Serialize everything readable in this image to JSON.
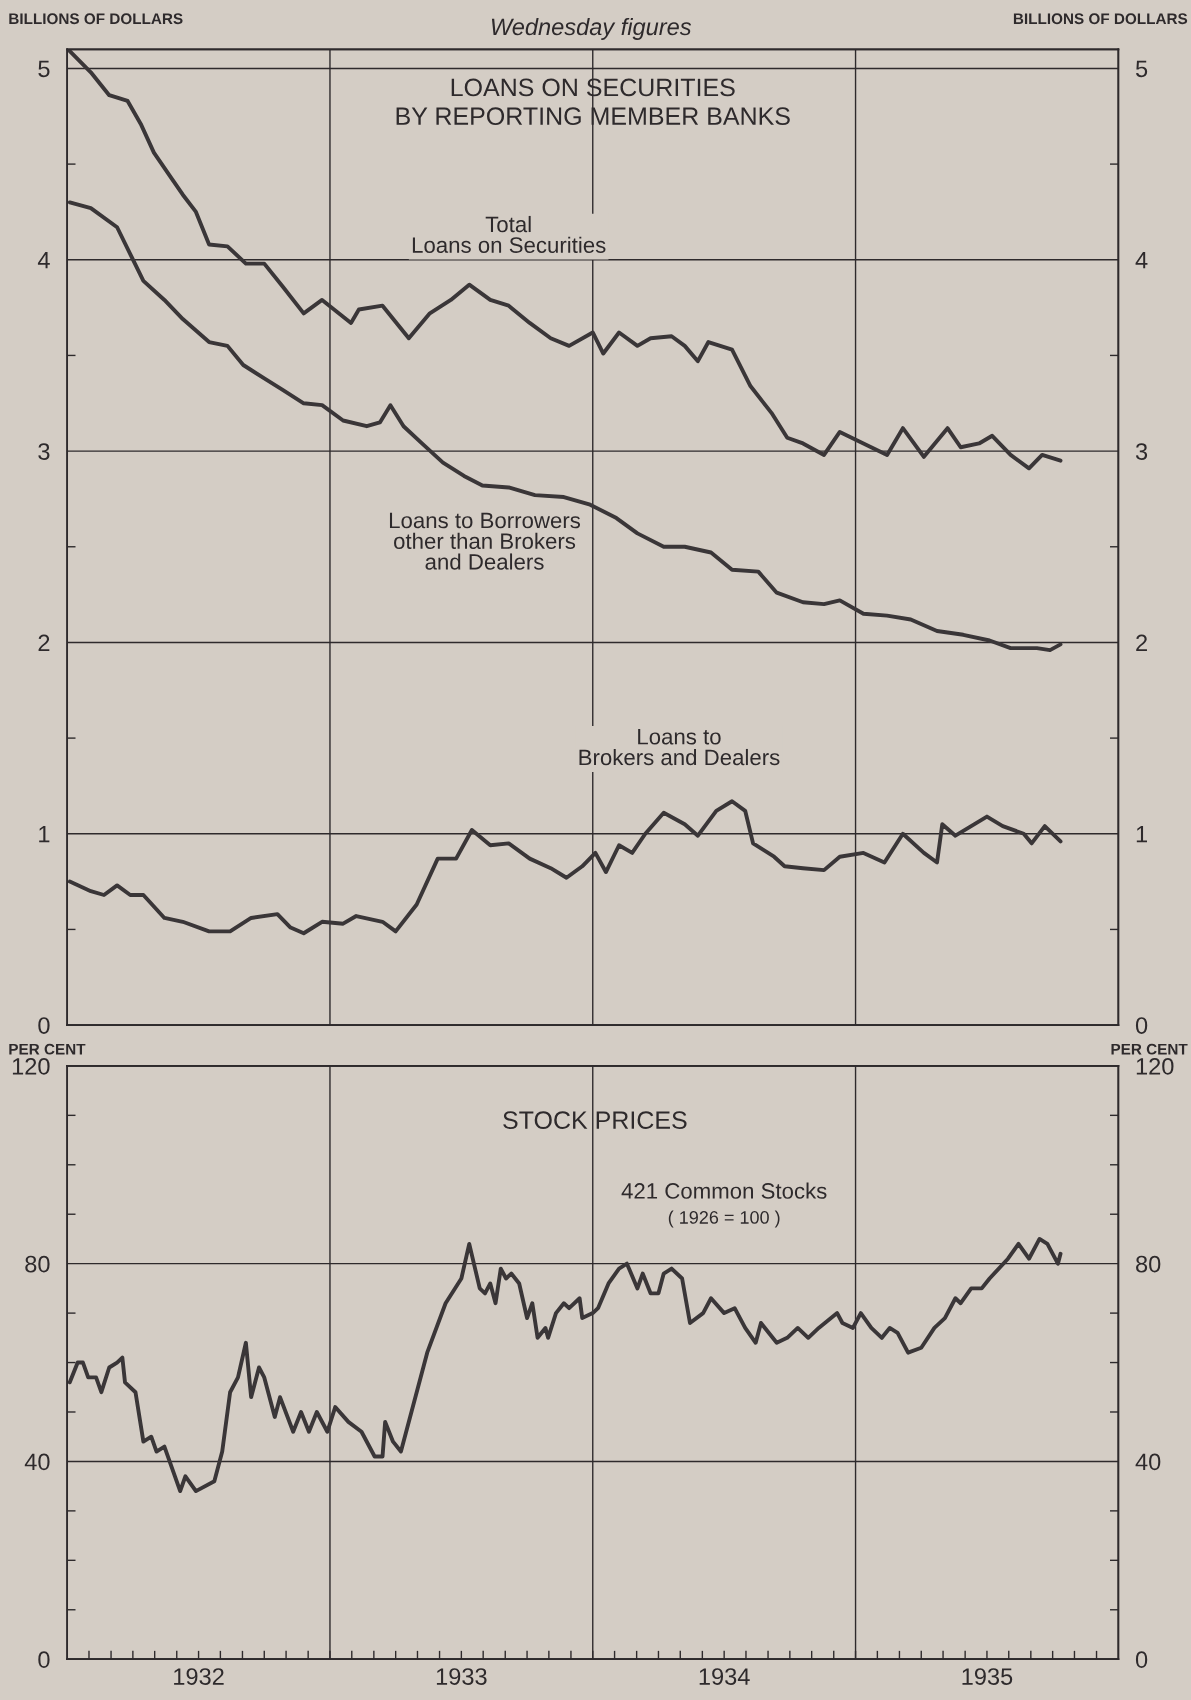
{
  "chart_data": [
    {
      "type": "line",
      "title": "LOANS ON SECURITIES\nBY REPORTING MEMBER BANKS",
      "ylabel": "BILLIONS OF DOLLARS",
      "y2label": "BILLIONS OF DOLLARS",
      "annotations": [
        "Wednesday figures"
      ],
      "xlim": [
        1932,
        1936
      ],
      "ylim": [
        0,
        5.1
      ],
      "y2lim": [
        0,
        5.1
      ],
      "yticks": [
        0,
        {
          "value": 0.5,
          "label": null
        },
        1,
        {
          "value": 1.5,
          "label": null
        },
        2,
        {
          "value": 2.5,
          "label": null
        },
        3,
        {
          "value": 3.5,
          "label": null
        },
        4,
        {
          "value": 4.5,
          "label": null
        },
        5
      ],
      "y2ticks": [
        0,
        {
          "value": 0.5,
          "label": null
        },
        1,
        {
          "value": 1.5,
          "label": null
        },
        2,
        {
          "value": 2.5,
          "label": null
        },
        3,
        {
          "value": 3.5,
          "label": null
        },
        4,
        {
          "value": 4.5,
          "label": null
        },
        5
      ],
      "tick_labels": "y",
      "grid": "y",
      "ref_lines": [
        {
          "axis": "x",
          "value": 1933
        },
        {
          "axis": "x",
          "value": 1934
        },
        {
          "axis": "x",
          "value": 1935
        }
      ],
      "series": [
        {
          "name": "Total\nLoans on Securities",
          "color": "#3a3638",
          "x": [
            1932.01,
            1932.09,
            1932.16,
            1932.23,
            1932.28,
            1932.33,
            1932.39,
            1932.44,
            1932.49,
            1932.54,
            1932.61,
            1932.68,
            1932.75,
            1932.82,
            1932.9,
            1932.97,
            1933.08,
            1933.11,
            1933.2,
            1933.3,
            1933.38,
            1933.46,
            1933.53,
            1933.61,
            1933.68,
            1933.76,
            1933.84,
            1933.91,
            1934.0,
            1934.04,
            1934.1,
            1934.17,
            1934.22,
            1934.3,
            1934.35,
            1934.4,
            1934.44,
            1934.53,
            1934.6,
            1934.68,
            1934.74,
            1934.8,
            1934.88,
            1934.94,
            1935.03,
            1935.12,
            1935.18,
            1935.26,
            1935.35,
            1935.4,
            1935.47,
            1935.52,
            1935.59,
            1935.66,
            1935.71,
            1935.78
          ],
          "values": [
            5.09,
            4.98,
            4.86,
            4.83,
            4.71,
            4.56,
            4.44,
            4.34,
            4.25,
            4.08,
            4.07,
            3.98,
            3.98,
            3.86,
            3.72,
            3.79,
            3.67,
            3.74,
            3.76,
            3.59,
            3.72,
            3.79,
            3.87,
            3.79,
            3.76,
            3.67,
            3.59,
            3.55,
            3.62,
            3.51,
            3.62,
            3.55,
            3.59,
            3.6,
            3.55,
            3.47,
            3.57,
            3.53,
            3.34,
            3.2,
            3.07,
            3.04,
            2.98,
            3.1,
            3.04,
            2.98,
            3.12,
            2.97,
            3.12,
            3.02,
            3.04,
            3.08,
            2.98,
            2.91,
            2.98,
            2.95
          ]
        },
        {
          "name": "Loans to Borrowers\nother than Brokers\nand Dealers",
          "color": "#3a3638",
          "x": [
            1932.01,
            1932.09,
            1932.19,
            1932.24,
            1932.29,
            1932.37,
            1932.44,
            1932.54,
            1932.61,
            1932.67,
            1932.75,
            1932.82,
            1932.9,
            1932.97,
            1933.05,
            1933.14,
            1933.19,
            1933.23,
            1933.28,
            1933.35,
            1933.43,
            1933.51,
            1933.58,
            1933.68,
            1933.78,
            1933.89,
            1933.99,
            1934.09,
            1934.17,
            1934.27,
            1934.35,
            1934.45,
            1934.53,
            1934.63,
            1934.7,
            1934.8,
            1934.88,
            1934.94,
            1935.03,
            1935.12,
            1935.21,
            1935.31,
            1935.41,
            1935.51,
            1935.59,
            1935.69,
            1935.74,
            1935.78
          ],
          "values": [
            4.3,
            4.27,
            4.17,
            4.03,
            3.89,
            3.79,
            3.69,
            3.57,
            3.55,
            3.45,
            3.38,
            3.32,
            3.25,
            3.24,
            3.16,
            3.13,
            3.15,
            3.24,
            3.13,
            3.04,
            2.94,
            2.87,
            2.82,
            2.81,
            2.77,
            2.76,
            2.72,
            2.65,
            2.57,
            2.5,
            2.5,
            2.47,
            2.38,
            2.37,
            2.26,
            2.21,
            2.2,
            2.22,
            2.15,
            2.14,
            2.12,
            2.06,
            2.04,
            2.01,
            1.97,
            1.97,
            1.96,
            1.99
          ]
        },
        {
          "name": "Loans to\nBrokers and Dealers",
          "color": "#3a3638",
          "x": [
            1932.01,
            1932.09,
            1932.14,
            1932.19,
            1932.24,
            1932.29,
            1932.37,
            1932.44,
            1932.54,
            1932.62,
            1932.7,
            1932.8,
            1932.85,
            1932.9,
            1932.97,
            1933.05,
            1933.1,
            1933.2,
            1933.25,
            1933.33,
            1933.41,
            1933.48,
            1933.54,
            1933.61,
            1933.68,
            1933.76,
            1933.84,
            1933.9,
            1933.96,
            1934.01,
            1934.05,
            1934.1,
            1934.15,
            1934.2,
            1934.27,
            1934.35,
            1934.4,
            1934.47,
            1934.53,
            1934.58,
            1934.61,
            1934.69,
            1934.73,
            1934.8,
            1934.88,
            1934.94,
            1935.03,
            1935.11,
            1935.18,
            1935.26,
            1935.31,
            1935.33,
            1935.38,
            1935.5,
            1935.56,
            1935.64,
            1935.67,
            1935.72,
            1935.78
          ],
          "values": [
            0.75,
            0.7,
            0.68,
            0.73,
            0.68,
            0.68,
            0.56,
            0.54,
            0.49,
            0.49,
            0.56,
            0.58,
            0.51,
            0.48,
            0.54,
            0.53,
            0.57,
            0.54,
            0.49,
            0.63,
            0.87,
            0.87,
            1.02,
            0.94,
            0.95,
            0.87,
            0.82,
            0.77,
            0.83,
            0.9,
            0.8,
            0.94,
            0.9,
            1.0,
            1.11,
            1.05,
            0.99,
            1.12,
            1.17,
            1.12,
            0.95,
            0.88,
            0.83,
            0.82,
            0.81,
            0.88,
            0.9,
            0.85,
            1.0,
            0.9,
            0.85,
            1.05,
            0.99,
            1.09,
            1.04,
            1.0,
            0.95,
            1.04,
            0.96
          ]
        }
      ]
    },
    {
      "type": "line",
      "title": "STOCK PRICES",
      "ylabel": "PER CENT",
      "y2label": "PER CENT",
      "annotations": [
        "( 1926 = 100 )"
      ],
      "xlim": [
        1932,
        1936
      ],
      "ylim": [
        0,
        120
      ],
      "y2lim": [
        0,
        120
      ],
      "xticks": [
        {
          "value": 1932.083,
          "label": null
        },
        {
          "value": 1932.167,
          "label": null
        },
        {
          "value": 1932.25,
          "label": null
        },
        {
          "value": 1932.333,
          "label": null
        },
        {
          "value": 1932.417,
          "label": null
        },
        {
          "value": 1932.5,
          "label": "1932"
        },
        {
          "value": 1932.583,
          "label": null
        },
        {
          "value": 1932.667,
          "label": null
        },
        {
          "value": 1932.75,
          "label": null
        },
        {
          "value": 1932.833,
          "label": null
        },
        {
          "value": 1932.917,
          "label": null
        },
        {
          "value": 1933,
          "label": null
        },
        {
          "value": 1933.083,
          "label": null
        },
        {
          "value": 1933.167,
          "label": null
        },
        {
          "value": 1933.25,
          "label": null
        },
        {
          "value": 1933.333,
          "label": null
        },
        {
          "value": 1933.417,
          "label": null
        },
        {
          "value": 1933.5,
          "label": "1933"
        },
        {
          "value": 1933.583,
          "label": null
        },
        {
          "value": 1933.667,
          "label": null
        },
        {
          "value": 1933.75,
          "label": null
        },
        {
          "value": 1933.833,
          "label": null
        },
        {
          "value": 1933.917,
          "label": null
        },
        {
          "value": 1934,
          "label": null
        },
        {
          "value": 1934.083,
          "label": null
        },
        {
          "value": 1934.167,
          "label": null
        },
        {
          "value": 1934.25,
          "label": null
        },
        {
          "value": 1934.333,
          "label": null
        },
        {
          "value": 1934.417,
          "label": null
        },
        {
          "value": 1934.5,
          "label": "1934"
        },
        {
          "value": 1934.583,
          "label": null
        },
        {
          "value": 1934.667,
          "label": null
        },
        {
          "value": 1934.75,
          "label": null
        },
        {
          "value": 1934.833,
          "label": null
        },
        {
          "value": 1934.917,
          "label": null
        },
        {
          "value": 1935,
          "label": null
        },
        {
          "value": 1935.083,
          "label": null
        },
        {
          "value": 1935.167,
          "label": null
        },
        {
          "value": 1935.25,
          "label": null
        },
        {
          "value": 1935.333,
          "label": null
        },
        {
          "value": 1935.417,
          "label": null
        },
        {
          "value": 1935.5,
          "label": "1935"
        },
        {
          "value": 1935.583,
          "label": null
        },
        {
          "value": 1935.667,
          "label": null
        },
        {
          "value": 1935.75,
          "label": null
        },
        {
          "value": 1935.833,
          "label": null
        },
        {
          "value": 1935.917,
          "label": null
        }
      ],
      "yticks": [
        0,
        {
          "value": 10,
          "label": null
        },
        {
          "value": 20,
          "label": null
        },
        {
          "value": 30,
          "label": null
        },
        40,
        {
          "value": 50,
          "label": null
        },
        {
          "value": 60,
          "label": null
        },
        {
          "value": 70,
          "label": null
        },
        80,
        {
          "value": 90,
          "label": null
        },
        {
          "value": 100,
          "label": null
        },
        {
          "value": 110,
          "label": null
        },
        120
      ],
      "y2ticks": [
        0,
        {
          "value": 10,
          "label": null
        },
        {
          "value": 20,
          "label": null
        },
        {
          "value": 30,
          "label": null
        },
        40,
        {
          "value": 50,
          "label": null
        },
        {
          "value": 60,
          "label": null
        },
        {
          "value": 70,
          "label": null
        },
        80,
        {
          "value": 90,
          "label": null
        },
        {
          "value": 100,
          "label": null
        },
        {
          "value": 110,
          "label": null
        },
        120
      ],
      "grid": "y",
      "ref_lines": [
        {
          "axis": "x",
          "value": 1933
        },
        {
          "axis": "x",
          "value": 1934
        },
        {
          "axis": "x",
          "value": 1935
        }
      ],
      "series": [
        {
          "name": "421 Common Stocks",
          "color": "#3a3638",
          "x": [
            1932.01,
            1932.04,
            1932.06,
            1932.08,
            1932.11,
            1932.13,
            1932.16,
            1932.19,
            1932.21,
            1932.22,
            1932.26,
            1932.29,
            1932.32,
            1932.34,
            1932.37,
            1932.43,
            1932.45,
            1932.49,
            1932.56,
            1932.59,
            1932.62,
            1932.65,
            1932.68,
            1932.7,
            1932.73,
            1932.75,
            1932.79,
            1932.81,
            1932.86,
            1932.89,
            1932.92,
            1932.95,
            1932.99,
            1933.02,
            1933.07,
            1933.12,
            1933.17,
            1933.2,
            1933.21,
            1933.24,
            1933.27,
            1933.37,
            1933.44,
            1933.5,
            1933.53,
            1933.57,
            1933.59,
            1933.61,
            1933.63,
            1933.65,
            1933.67,
            1933.69,
            1933.72,
            1933.75,
            1933.77,
            1933.79,
            1933.82,
            1933.83,
            1933.86,
            1933.89,
            1933.91,
            1933.95,
            1933.96,
            1934.0,
            1934.02,
            1934.06,
            1934.1,
            1934.13,
            1934.17,
            1934.19,
            1934.22,
            1934.25,
            1934.27,
            1934.3,
            1934.34,
            1934.37,
            1934.42,
            1934.45,
            1934.5,
            1934.54,
            1934.58,
            1934.62,
            1934.64,
            1934.7,
            1934.74,
            1934.78,
            1934.82,
            1934.86,
            1934.93,
            1934.95,
            1934.99,
            1935.02,
            1935.06,
            1935.1,
            1935.13,
            1935.16,
            1935.2,
            1935.25,
            1935.3,
            1935.34,
            1935.38,
            1935.4,
            1935.44,
            1935.48,
            1935.51,
            1935.58,
            1935.62,
            1935.66,
            1935.7,
            1935.73,
            1935.77,
            1935.78
          ],
          "values": [
            56,
            60,
            60,
            57,
            57,
            54,
            59,
            60,
            61,
            56,
            54,
            44,
            45,
            42,
            43,
            34,
            37,
            34,
            36,
            42,
            54,
            57,
            64,
            53,
            59,
            57,
            49,
            53,
            46,
            50,
            46,
            50,
            46,
            51,
            48,
            46,
            41,
            41,
            48,
            44,
            42,
            62,
            72,
            77,
            84,
            75,
            74,
            76,
            72,
            79,
            77,
            78,
            76,
            69,
            72,
            65,
            67,
            65,
            70,
            72,
            71,
            73,
            69,
            70,
            71,
            76,
            79,
            80,
            75,
            78,
            74,
            74,
            78,
            79,
            77,
            68,
            70,
            73,
            70,
            71,
            67,
            64,
            68,
            64,
            65,
            67,
            65,
            67,
            70,
            68,
            67,
            70,
            67,
            65,
            67,
            66,
            62,
            63,
            67,
            69,
            73,
            72,
            75,
            75,
            77,
            81,
            84,
            81,
            85,
            84,
            80,
            82
          ]
        }
      ]
    }
  ]
}
